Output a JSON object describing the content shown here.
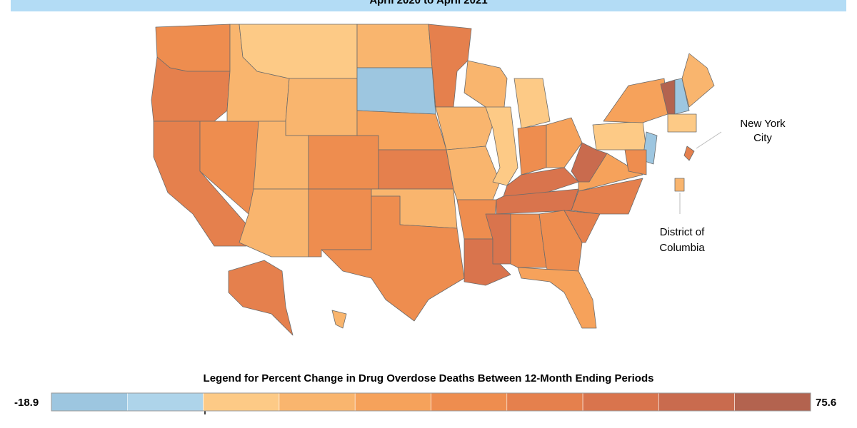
{
  "header": {
    "title": "April 2020 to April 2021"
  },
  "callouts": [
    {
      "lines": [
        "New York",
        "City"
      ]
    },
    {
      "lines": [
        "District of",
        "Columbia"
      ]
    }
  ],
  "legend": {
    "title": "Legend for Percent Change in Drug Overdose Deaths Between 12-Month Ending Periods",
    "min": -18.9,
    "max": 75.6,
    "colors": [
      "#9dc6e0",
      "#aed4ea",
      "#fdca86",
      "#f9b56e",
      "#f6a25b",
      "#ee8d4f",
      "#e5804d",
      "#d9744d",
      "#c96b4e",
      "#b3634f"
    ]
  }
}
